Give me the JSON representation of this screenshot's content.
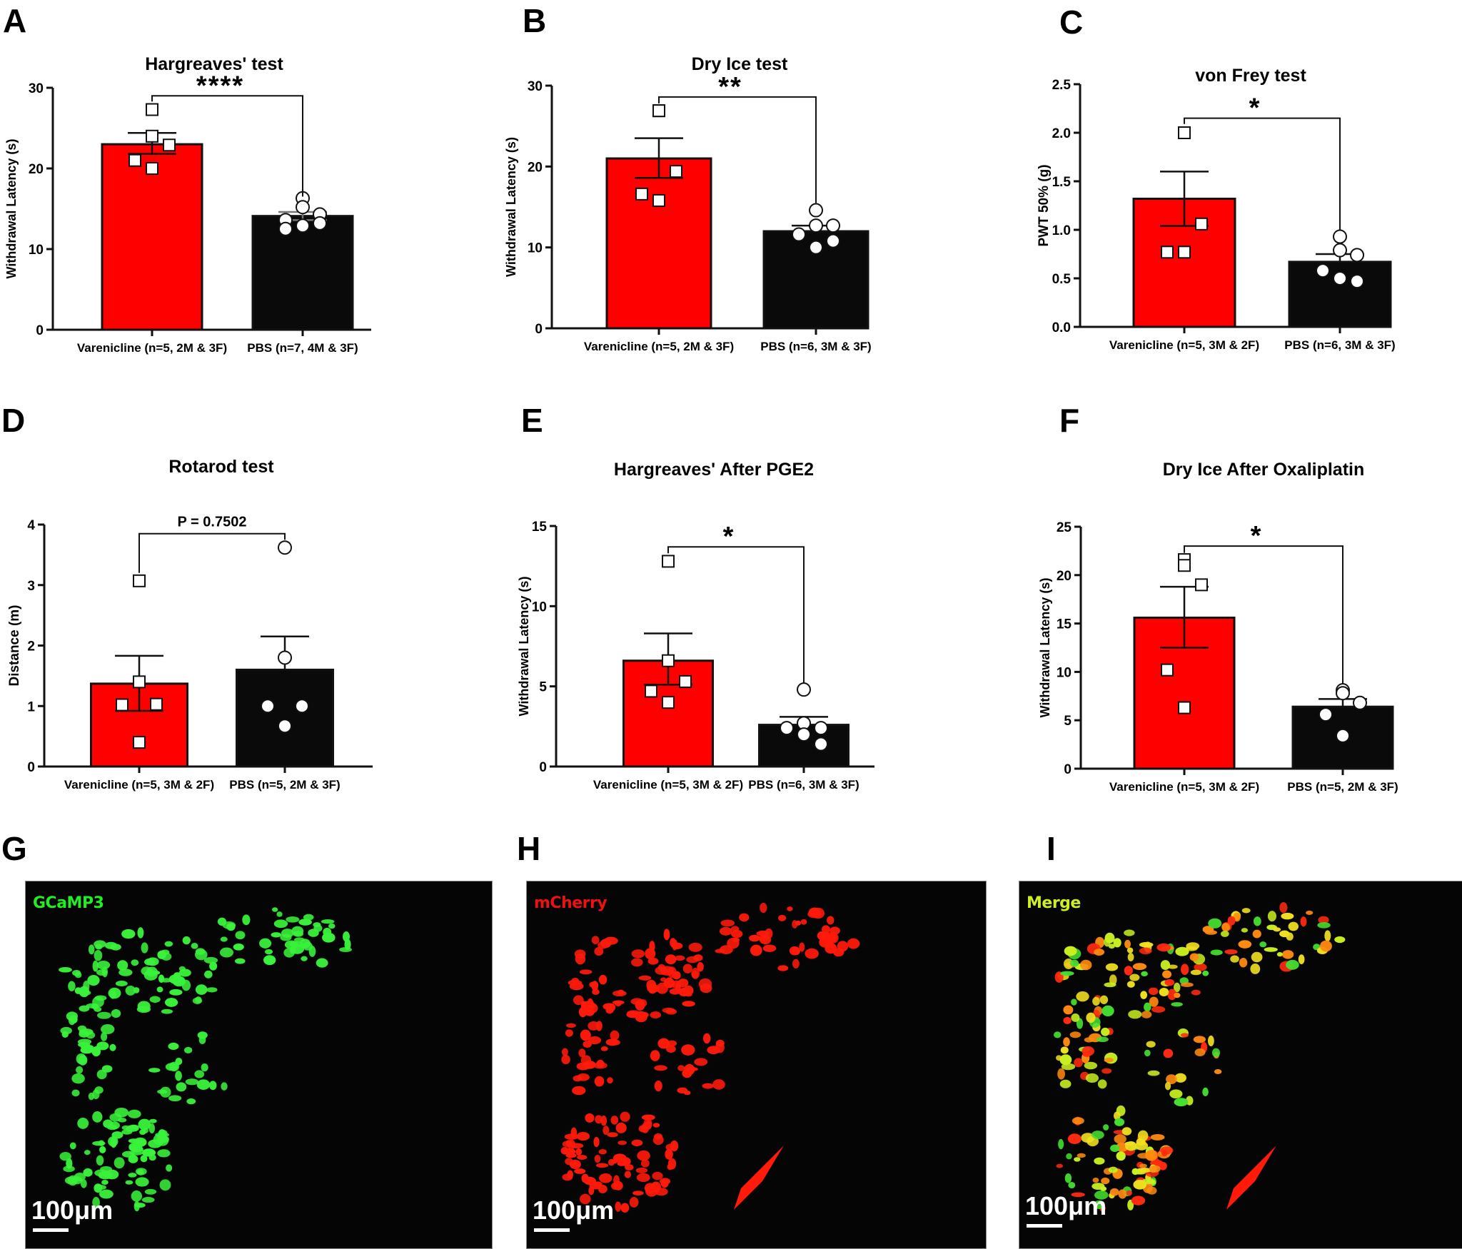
{
  "panel_letters": [
    "A",
    "B",
    "C",
    "D",
    "E",
    "F",
    "G",
    "H",
    "I"
  ],
  "colors": {
    "varenicline_bar": "#ff0000",
    "pbs_bar": "#0a0a0a",
    "gcamp3_label": "#22ee22",
    "mcherry_label": "#ee1111",
    "merge_label": "#ccee22"
  },
  "chart_data": [
    {
      "panel": "A",
      "type": "bar",
      "title": "Hargreaves' test",
      "ylabel": "Withdrawal Latency (s)",
      "xlabel": "",
      "ylim": [
        0,
        30
      ],
      "yticks": [
        "0",
        "10",
        "20",
        "30"
      ],
      "ytick_values": [
        0,
        10,
        20,
        30
      ],
      "categories": [
        "Varenicline (n=5, 2M & 3F)",
        "PBS (n=7, 4M & 3F)"
      ],
      "values": [
        23.0,
        14.1
      ],
      "sem": [
        [
          21.8,
          24.4
        ],
        [
          13.6,
          14.6
        ]
      ],
      "points": [
        [
          27.3,
          24.0,
          22.9,
          21.0,
          20.0
        ],
        [
          16.3,
          15.2,
          14.3,
          13.6,
          12.9,
          13.2,
          12.5
        ]
      ],
      "significance": "****",
      "bracket_y": 29.0,
      "bracket_right_bottom": 16.5,
      "bracket_left_bottom": 28.3
    },
    {
      "panel": "B",
      "type": "bar",
      "title": "Dry Ice test",
      "ylabel": "Withdrawal Latency (s)",
      "xlabel": "",
      "ylim": [
        0,
        30
      ],
      "yticks": [
        "0",
        "10",
        "20",
        "30"
      ],
      "ytick_values": [
        0,
        10,
        20,
        30
      ],
      "categories": [
        "Varenicline (n=5, 2M & 3F)",
        "PBS (n=6, 3M & 3F)"
      ],
      "values": [
        21.0,
        12.0
      ],
      "sem": [
        [
          18.6,
          23.5
        ],
        [
          12.0,
          12.7
        ]
      ],
      "points": [
        [
          26.9,
          26.9,
          19.4,
          16.6,
          15.8
        ],
        [
          14.6,
          12.7,
          12.7,
          11.6,
          10.0,
          10.8
        ]
      ],
      "significance": "**",
      "bracket_y": 28.6,
      "bracket_right_bottom": 15.5,
      "bracket_left_bottom": 27.8
    },
    {
      "panel": "C",
      "type": "bar",
      "title": "von Frey test",
      "ylabel": "PWT 50% (g)",
      "xlabel": "",
      "ylim": [
        0,
        2.5
      ],
      "yticks": [
        "0.0",
        "0.5",
        "1.0",
        "1.5",
        "2.0",
        "2.5"
      ],
      "ytick_values": [
        0,
        0.5,
        1.0,
        1.5,
        2.0,
        2.5
      ],
      "categories": [
        "Varenicline (n=5, 3M & 2F)",
        "PBS (n=6, 3M & 3F)"
      ],
      "values": [
        1.32,
        0.67
      ],
      "sem": [
        [
          1.04,
          1.6
        ],
        [
          0.67,
          0.75
        ]
      ],
      "points": [
        [
          2.0,
          2.0,
          1.06,
          0.77,
          0.77
        ],
        [
          0.93,
          0.79,
          0.74,
          0.58,
          0.5,
          0.47
        ]
      ],
      "significance": "*",
      "bracket_y": 2.15,
      "bracket_right_bottom": 1.0,
      "bracket_left_bottom": 2.09
    },
    {
      "panel": "D",
      "type": "bar",
      "title": "Rotarod test",
      "ylabel": "Distance (m)",
      "xlabel": "",
      "ylim": [
        0,
        4
      ],
      "yticks": [
        "0",
        "1",
        "2",
        "3",
        "4"
      ],
      "ytick_values": [
        0,
        1,
        2,
        3,
        4
      ],
      "categories": [
        "Varenicline (n=5, 3M & 2F)",
        "PBS (n=5, 2M & 3F)"
      ],
      "values": [
        1.37,
        1.6
      ],
      "sem": [
        [
          0.92,
          1.83
        ],
        [
          1.6,
          2.15
        ]
      ],
      "points": [
        [
          3.07,
          1.4,
          1.03,
          1.02,
          0.4
        ],
        [
          3.62,
          1.8,
          1.0,
          1.0,
          0.67
        ]
      ],
      "significance": "P = 0.7502",
      "bracket_y": 3.85,
      "bracket_right_bottom": 3.75,
      "bracket_left_bottom": 3.2
    },
    {
      "panel": "E",
      "type": "bar",
      "title": "Hargreaves' After PGE2",
      "ylabel": "Withdrawal Latency (s)",
      "xlabel": "",
      "ylim": [
        0,
        15
      ],
      "yticks": [
        "0",
        "5",
        "10",
        "15"
      ],
      "ytick_values": [
        0,
        5,
        10,
        15
      ],
      "categories": [
        "Varenicline (n=5, 3M & 2F)",
        "PBS (n=6, 3M & 3F)"
      ],
      "values": [
        6.6,
        2.6
      ],
      "sem": [
        [
          5.1,
          8.3
        ],
        [
          2.6,
          3.1
        ]
      ],
      "points": [
        [
          12.8,
          6.6,
          5.3,
          4.7,
          4.0
        ],
        [
          4.8,
          2.7,
          2.4,
          2.4,
          2.0,
          1.4
        ]
      ],
      "significance": "*",
      "bracket_y": 13.7,
      "bracket_right_bottom": 5.2,
      "bracket_left_bottom": 13.3
    },
    {
      "panel": "F",
      "type": "bar",
      "title": "Dry Ice After Oxaliplatin",
      "ylabel": "Withdrawal Latency (s)",
      "xlabel": "",
      "ylim": [
        0,
        25
      ],
      "yticks": [
        "0",
        "5",
        "10",
        "15",
        "20",
        "25"
      ],
      "ytick_values": [
        0,
        5,
        10,
        15,
        20,
        25
      ],
      "categories": [
        "Varenicline (n=5, 3M & 2F)",
        "PBS (n=5, 2M & 3F)"
      ],
      "values": [
        15.6,
        6.4
      ],
      "sem": [
        [
          12.5,
          18.8
        ],
        [
          6.4,
          7.2
        ]
      ],
      "points": [
        [
          21.6,
          21.0,
          19.0,
          10.2,
          6.3
        ],
        [
          8.1,
          7.8,
          6.8,
          5.6,
          3.4
        ]
      ],
      "significance": "*",
      "bracket_y": 23.0,
      "bracket_right_bottom": 8.8,
      "bracket_left_bottom": 22.3
    }
  ],
  "micrographs": [
    {
      "panel": "G",
      "label": "GCaMP3",
      "scale_bar": "100μm",
      "channel": "green"
    },
    {
      "panel": "H",
      "label": "mCherry",
      "scale_bar": "100μm",
      "channel": "red"
    },
    {
      "panel": "I",
      "label": "Merge",
      "scale_bar": "100μm",
      "channel": "merge"
    }
  ]
}
